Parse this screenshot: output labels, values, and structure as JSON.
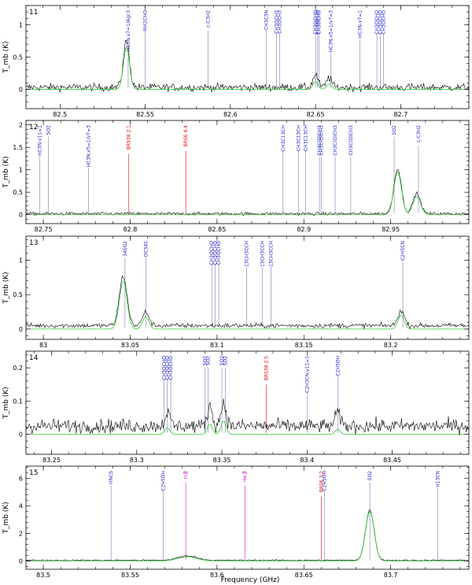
{
  "chart_data": {
    "type": "line",
    "xlabel": "Frequency (GHz)",
    "ylabel": "T_mb (K)",
    "colors": {
      "observed": "#000000",
      "model": "#33cc33",
      "line_blue": "#1a1acc",
      "line_red": "#e00000",
      "line_magenta": "#cc00cc",
      "marker": "#7a7ab8"
    },
    "panels": [
      {
        "id": "11",
        "label": "11",
        "xlim": [
          82.48,
          82.74
        ],
        "ylim": [
          -0.3,
          1.3
        ],
        "xticks": [
          82.5,
          82.55,
          82.6,
          82.65,
          82.7
        ],
        "yticks": [
          0,
          0.5,
          1
        ],
        "xtick_labels": [
          "82.5",
          "82.55",
          "82.6",
          "82.65",
          "82.7"
        ],
        "ytick_labels": [
          "0",
          "0.5",
          "1"
        ],
        "baseline_noise": 0.05,
        "obs_offset": 0.03,
        "peaks": [
          {
            "x": 82.539,
            "h": 0.65,
            "w": 0.0018,
            "obs": 0.72
          },
          {
            "x": 82.65,
            "h": 0.12,
            "w": 0.0015,
            "obs": 0.2
          },
          {
            "x": 82.658,
            "h": 0.08,
            "w": 0.0015,
            "obs": 0.15
          }
        ],
        "labels": [
          {
            "x": 82.54,
            "text": "HC3N,v7=1/Agc3",
            "color": "blue"
          },
          {
            "x": 82.55,
            "text": "NH2CHO",
            "color": "blue"
          },
          {
            "x": 82.587,
            "text": "c-C3H2",
            "color": "blue"
          },
          {
            "x": 82.621,
            "text": "CH3C3N",
            "color": "blue"
          },
          {
            "x": 82.627,
            "text": "CH3OCH3",
            "color": "blue"
          },
          {
            "x": 82.629,
            "text": "CH3OCH3",
            "color": "blue"
          },
          {
            "x": 82.65,
            "text": "CH3OCHO",
            "color": "blue"
          },
          {
            "x": 82.651,
            "text": "CH3OCHO",
            "color": "blue"
          },
          {
            "x": 82.652,
            "text": "CH3OCHO",
            "color": "blue"
          },
          {
            "x": 82.659,
            "text": "HC3N,v5=1/v7=3",
            "color": "blue"
          },
          {
            "x": 82.676,
            "text": "HC3N,v7=1",
            "color": "blue"
          },
          {
            "x": 82.686,
            "text": "CH3OCHO",
            "color": "blue"
          },
          {
            "x": 82.688,
            "text": "CH3OCHO",
            "color": "blue"
          },
          {
            "x": 82.69,
            "text": "CH3OCHO",
            "color": "blue"
          }
        ]
      },
      {
        "id": "12",
        "label": "12",
        "xlim": [
          82.74,
          82.995
        ],
        "ylim": [
          -0.2,
          2.1
        ],
        "xticks": [
          82.75,
          82.8,
          82.85,
          82.9,
          82.95
        ],
        "yticks": [
          0,
          0.5,
          1,
          1.5,
          2
        ],
        "xtick_labels": [
          "82.75",
          "82.8",
          "82.85",
          "82.9",
          "82.95"
        ],
        "ytick_labels": [
          "0",
          "0.5",
          "1",
          "1.5",
          "2"
        ],
        "baseline_noise": 0.03,
        "obs_offset": 0.02,
        "peaks": [
          {
            "x": 82.954,
            "h": 0.95,
            "w": 0.0022,
            "obs": 1.0
          },
          {
            "x": 82.965,
            "h": 0.4,
            "w": 0.0022,
            "obs": 0.45
          }
        ],
        "labels": [
          {
            "x": 82.748,
            "text": "HC3N,v11=1",
            "color": "blue"
          },
          {
            "x": 82.753,
            "text": "SO2",
            "color": "blue"
          },
          {
            "x": 82.776,
            "text": "HC3N,v5=1/v7=3",
            "color": "blue"
          },
          {
            "x": 82.799,
            "text": "BRS38 2.1",
            "color": "red"
          },
          {
            "x": 82.832,
            "text": "BRS6 4.4",
            "color": "red"
          },
          {
            "x": 82.888,
            "text": "CH3C13CH",
            "color": "blue"
          },
          {
            "x": 82.897,
            "text": "CH3C13CH",
            "color": "blue"
          },
          {
            "x": 82.901,
            "text": "CH3C13CH",
            "color": "blue"
          },
          {
            "x": 82.909,
            "text": "CH3C(O)CH3",
            "color": "blue"
          },
          {
            "x": 82.91,
            "text": "CH3C(O)CH3",
            "color": "blue"
          },
          {
            "x": 82.918,
            "text": "CH3C(O)CH3",
            "color": "blue"
          },
          {
            "x": 82.927,
            "text": "CH3C(O)CH3",
            "color": "blue"
          },
          {
            "x": 82.952,
            "text": "SO2",
            "color": "blue"
          },
          {
            "x": 82.966,
            "text": "c-C3H2",
            "color": "blue"
          }
        ]
      },
      {
        "id": "13",
        "label": "13",
        "xlim": [
          82.99,
          83.245
        ],
        "ylim": [
          -0.15,
          1.35
        ],
        "xticks": [
          83.0,
          83.05,
          83.1,
          83.15,
          83.2
        ],
        "yticks": [
          0,
          0.5,
          1
        ],
        "xtick_labels": [
          "83",
          "83.05",
          "83.1",
          "83.15",
          "83.2"
        ],
        "ytick_labels": [
          "0",
          "0.5",
          "1"
        ],
        "baseline_noise": 0.03,
        "obs_offset": 0.05,
        "peaks": [
          {
            "x": 83.046,
            "h": 0.7,
            "w": 0.0022,
            "obs": 0.72
          },
          {
            "x": 83.059,
            "h": 0.18,
            "w": 0.0018,
            "obs": 0.2
          },
          {
            "x": 83.206,
            "h": 0.2,
            "w": 0.0018,
            "obs": 0.22
          }
        ],
        "labels": [
          {
            "x": 83.047,
            "text": "34SO2",
            "color": "blue"
          },
          {
            "x": 83.059,
            "text": "OC34S",
            "color": "blue"
          },
          {
            "x": 83.097,
            "text": "CH3OCHO",
            "color": "blue"
          },
          {
            "x": 83.099,
            "text": "CH3OCHO",
            "color": "blue"
          },
          {
            "x": 83.101,
            "text": "CH3OCHO",
            "color": "blue"
          },
          {
            "x": 83.117,
            "text": "13CH3CCH",
            "color": "blue"
          },
          {
            "x": 83.126,
            "text": "13CH3CCH",
            "color": "blue"
          },
          {
            "x": 83.131,
            "text": "13CH3CCH",
            "color": "blue"
          },
          {
            "x": 83.207,
            "text": "C2H5CN",
            "color": "blue"
          }
        ]
      },
      {
        "id": "14",
        "label": "14",
        "xlim": [
          83.235,
          83.495
        ],
        "ylim": [
          -0.06,
          0.25
        ],
        "xticks": [
          83.25,
          83.3,
          83.35,
          83.4,
          83.45
        ],
        "yticks": [
          0,
          0.1,
          0.2
        ],
        "xtick_labels": [
          "83.25",
          "83.3",
          "83.35",
          "83.4",
          "83.45"
        ],
        "ytick_labels": [
          "0",
          "0.1",
          "0.2"
        ],
        "baseline_noise": 0.018,
        "obs_offset": 0.025,
        "peaks": [
          {
            "x": 83.318,
            "h": 0.02,
            "w": 0.0015,
            "obs": 0.04
          },
          {
            "x": 83.343,
            "h": 0.03,
            "w": 0.0015,
            "obs": 0.06
          },
          {
            "x": 83.351,
            "h": 0.04,
            "w": 0.0015,
            "obs": 0.07
          },
          {
            "x": 83.418,
            "h": 0.015,
            "w": 0.0015,
            "obs": 0.04
          }
        ],
        "labels": [
          {
            "x": 83.316,
            "text": "CH3OCHO",
            "color": "blue"
          },
          {
            "x": 83.318,
            "text": "CH3OCHO",
            "color": "blue"
          },
          {
            "x": 83.32,
            "text": "CH3OCHO",
            "color": "blue"
          },
          {
            "x": 83.34,
            "text": "SO2",
            "color": "blue"
          },
          {
            "x": 83.342,
            "text": "SO2",
            "color": "blue"
          },
          {
            "x": 83.35,
            "text": "SO2",
            "color": "blue"
          },
          {
            "x": 83.352,
            "text": "SO2",
            "color": "blue"
          },
          {
            "x": 83.376,
            "text": "BRS38 2.5",
            "color": "red"
          },
          {
            "x": 83.4,
            "text": "C2H3CN,v11=1",
            "color": "blue"
          },
          {
            "x": 83.418,
            "text": "C2H5OH",
            "color": "blue"
          }
        ]
      },
      {
        "id": "15",
        "label": "15",
        "xlim": [
          83.49,
          83.745
        ],
        "ylim": [
          -0.6,
          6.9
        ],
        "xticks": [
          83.5,
          83.55,
          83.6,
          83.65,
          83.7
        ],
        "yticks": [
          0,
          2,
          4,
          6
        ],
        "xtick_labels": [
          "83.5",
          "83.55",
          "83.6",
          "83.65",
          "83.7"
        ],
        "ytick_labels": [
          "0",
          "2",
          "4",
          "6"
        ],
        "baseline_noise": 0.05,
        "obs_offset": 0.05,
        "peaks": [
          {
            "x": 83.688,
            "h": 3.6,
            "w": 0.0025,
            "obs": 3.65
          },
          {
            "x": 83.583,
            "h": 0.3,
            "w": 0.0055,
            "obs": 0.32
          }
        ],
        "labels": [
          {
            "x": 83.539,
            "text": "HNCS",
            "color": "blue"
          },
          {
            "x": 83.569,
            "text": "C2H5OH",
            "color": "blue"
          },
          {
            "x": 83.582,
            "text": "H β",
            "color": "magenta"
          },
          {
            "x": 83.616,
            "text": "He β",
            "color": "magenta"
          },
          {
            "x": 83.66,
            "text": "BRS6 3.2",
            "color": "red"
          },
          {
            "x": 83.662,
            "text": "C2H5OH",
            "color": "blue"
          },
          {
            "x": 83.688,
            "text": "SO2",
            "color": "blue"
          },
          {
            "x": 83.727,
            "text": "H13CN",
            "color": "blue"
          }
        ]
      }
    ]
  }
}
